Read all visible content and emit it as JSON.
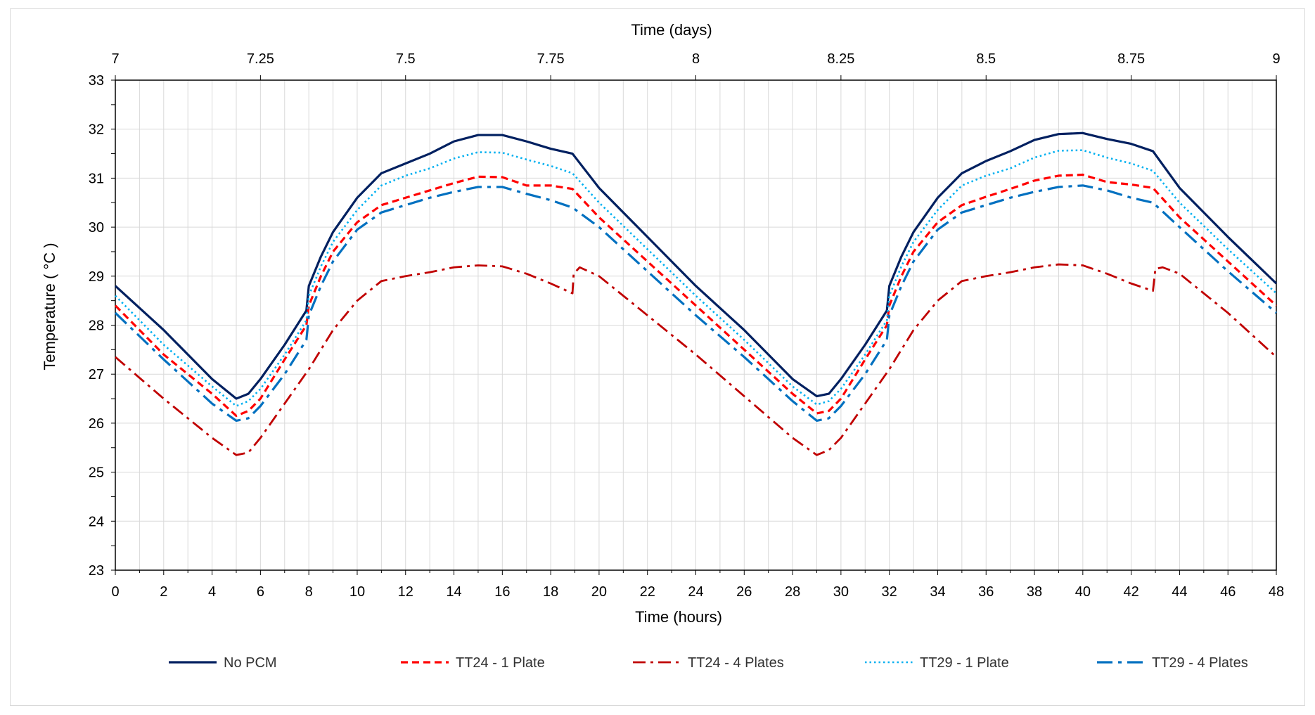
{
  "chart_data": {
    "type": "line",
    "title": "",
    "xlabel": "Time (hours)",
    "x2label": "Time (days)",
    "ylabel": "Temperature ( °C )",
    "xlim": [
      0,
      48
    ],
    "ylim": [
      23,
      33
    ],
    "x2lim": [
      7,
      9
    ],
    "xticks": [
      0,
      2,
      4,
      6,
      8,
      10,
      12,
      14,
      16,
      18,
      20,
      22,
      24,
      26,
      28,
      30,
      32,
      34,
      36,
      38,
      40,
      42,
      44,
      46,
      48
    ],
    "x2ticks": [
      "7",
      "7.25",
      "7.5",
      "7.75",
      "8",
      "8.25",
      "8.5",
      "8.75",
      "9"
    ],
    "yticks": [
      23,
      24,
      25,
      26,
      27,
      28,
      29,
      30,
      31,
      32,
      33
    ],
    "grid": true,
    "legend_position": "bottom",
    "series": [
      {
        "name": "No PCM",
        "color": "#002060",
        "dash": "solid",
        "x": [
          0,
          2,
          4,
          5,
          5.5,
          6,
          7,
          7.9,
          8,
          8.5,
          9,
          10,
          11,
          12,
          13,
          14,
          15,
          16,
          17,
          18,
          18.9,
          20,
          22,
          24,
          26,
          28,
          29,
          29.5,
          30,
          31,
          31.9,
          32,
          32.5,
          33,
          34,
          35,
          36,
          37,
          38,
          39,
          40,
          41,
          42,
          42.9,
          44,
          46,
          48
        ],
        "y": [
          28.8,
          27.9,
          26.9,
          26.5,
          26.6,
          26.9,
          27.6,
          28.3,
          28.8,
          29.4,
          29.9,
          30.6,
          31.1,
          31.3,
          31.5,
          31.75,
          31.88,
          31.88,
          31.75,
          31.6,
          31.5,
          30.8,
          29.8,
          28.8,
          27.9,
          26.9,
          26.55,
          26.6,
          26.9,
          27.6,
          28.3,
          28.8,
          29.4,
          29.9,
          30.6,
          31.1,
          31.35,
          31.55,
          31.78,
          31.9,
          31.92,
          31.8,
          31.7,
          31.55,
          30.8,
          29.8,
          28.85
        ]
      },
      {
        "name": "TT24 - 1 Plate",
        "color": "#FF0000",
        "dash": "dash",
        "x": [
          0,
          2,
          4,
          5,
          5.5,
          6,
          7,
          7.9,
          8,
          8.5,
          9,
          10,
          11,
          12,
          13,
          14,
          15,
          16,
          17,
          18,
          18.9,
          20,
          22,
          24,
          26,
          28,
          29,
          29.5,
          30,
          31,
          31.9,
          32,
          32.5,
          33,
          34,
          35,
          36,
          37,
          38,
          39,
          40,
          41,
          42,
          42.9,
          44,
          46,
          48
        ],
        "y": [
          28.4,
          27.4,
          26.6,
          26.15,
          26.25,
          26.5,
          27.3,
          28.0,
          28.4,
          29.0,
          29.5,
          30.1,
          30.45,
          30.6,
          30.75,
          30.9,
          31.03,
          31.02,
          30.85,
          30.85,
          30.78,
          30.2,
          29.3,
          28.4,
          27.5,
          26.6,
          26.2,
          26.25,
          26.5,
          27.3,
          28.0,
          28.4,
          29.0,
          29.5,
          30.1,
          30.45,
          30.62,
          30.78,
          30.95,
          31.05,
          31.07,
          30.92,
          30.87,
          30.8,
          30.2,
          29.3,
          28.4
        ]
      },
      {
        "name": "TT24 - 4 Plates",
        "color": "#C00000",
        "dash": "dashdot",
        "x": [
          0,
          2,
          4,
          5,
          5.5,
          6,
          7,
          8,
          9,
          10,
          11,
          12,
          13,
          14,
          15,
          16,
          17,
          18,
          18.9,
          18.95,
          19.2,
          20,
          22,
          24,
          26,
          28,
          29,
          29.5,
          30,
          31,
          32,
          33,
          34,
          35,
          36,
          37,
          38,
          39,
          40,
          41,
          42,
          42.9,
          43.0,
          43.3,
          44,
          46,
          48
        ],
        "y": [
          27.35,
          26.5,
          25.7,
          25.35,
          25.4,
          25.7,
          26.4,
          27.1,
          27.9,
          28.5,
          28.9,
          29.0,
          29.08,
          29.18,
          29.22,
          29.2,
          29.05,
          28.85,
          28.65,
          29.05,
          29.18,
          29.0,
          28.2,
          27.4,
          26.55,
          25.7,
          25.35,
          25.45,
          25.7,
          26.4,
          27.1,
          27.9,
          28.5,
          28.9,
          29.0,
          29.08,
          29.18,
          29.24,
          29.22,
          29.05,
          28.85,
          28.7,
          29.15,
          29.18,
          29.05,
          28.25,
          27.35
        ]
      },
      {
        "name": "TT29 - 1 Plate",
        "color": "#00B0F0",
        "dash": "dot",
        "x": [
          0,
          2,
          4,
          5,
          5.5,
          6,
          7,
          7.9,
          8,
          8.5,
          9,
          10,
          11,
          12,
          13,
          14,
          15,
          16,
          17,
          18,
          18.9,
          20,
          22,
          24,
          26,
          28,
          29,
          29.5,
          30,
          31,
          31.9,
          32,
          32.5,
          33,
          34,
          35,
          36,
          37,
          38,
          39,
          40,
          41,
          42,
          42.9,
          44,
          46,
          48
        ],
        "y": [
          28.6,
          27.6,
          26.75,
          26.35,
          26.45,
          26.7,
          27.4,
          28.1,
          28.6,
          29.2,
          29.7,
          30.35,
          30.85,
          31.05,
          31.2,
          31.4,
          31.53,
          31.52,
          31.38,
          31.25,
          31.1,
          30.5,
          29.55,
          28.6,
          27.7,
          26.75,
          26.38,
          26.45,
          26.7,
          27.4,
          28.1,
          28.6,
          29.2,
          29.7,
          30.35,
          30.85,
          31.05,
          31.2,
          31.42,
          31.56,
          31.57,
          31.42,
          31.3,
          31.15,
          30.5,
          29.55,
          28.65
        ]
      },
      {
        "name": "TT29 - 4 Plates",
        "color": "#0070C0",
        "dash": "longdashdot",
        "x": [
          0,
          2,
          4,
          5,
          5.5,
          6,
          7,
          7.9,
          8,
          8.5,
          9,
          10,
          11,
          12,
          13,
          14,
          15,
          16,
          17,
          18,
          18.9,
          20,
          22,
          24,
          26,
          28,
          29,
          29.5,
          30,
          31,
          31.9,
          32,
          32.5,
          33,
          34,
          35,
          36,
          37,
          38,
          39,
          40,
          41,
          42,
          42.9,
          44,
          46,
          48
        ],
        "y": [
          28.25,
          27.3,
          26.4,
          26.05,
          26.1,
          26.35,
          27.0,
          27.7,
          28.2,
          28.8,
          29.3,
          29.95,
          30.3,
          30.45,
          30.6,
          30.72,
          30.82,
          30.82,
          30.68,
          30.55,
          30.4,
          30.0,
          29.1,
          28.2,
          27.35,
          26.45,
          26.05,
          26.1,
          26.35,
          27.0,
          27.7,
          28.2,
          28.8,
          29.3,
          29.95,
          30.3,
          30.45,
          30.6,
          30.72,
          30.82,
          30.85,
          30.75,
          30.6,
          30.5,
          30.0,
          29.1,
          28.25
        ]
      }
    ]
  }
}
